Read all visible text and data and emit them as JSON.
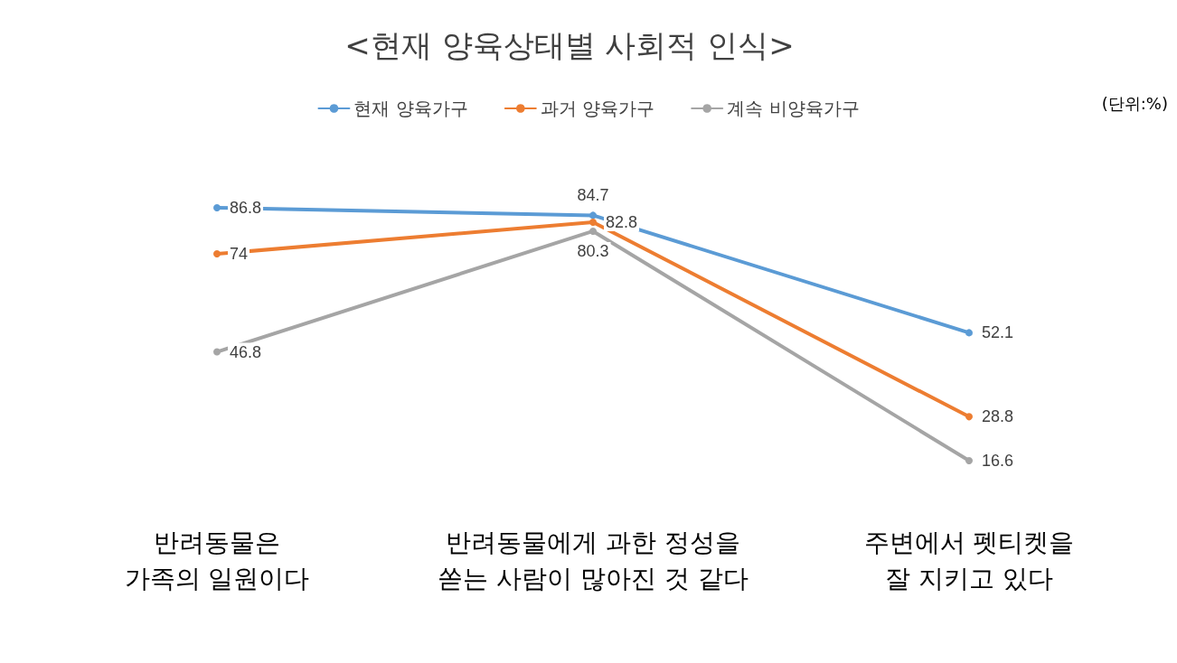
{
  "chart_data": {
    "type": "line",
    "title": "<현재 양육상태별 사회적 인식>",
    "categories": [
      "반려동물은\n가족의 일원이다",
      "반려동물에게 과한 정성을\n쏟는 사람이 많아진 것 같다",
      "주변에서 펫티켓을\n잘 지키고 있다"
    ],
    "series": [
      {
        "name": "현재 양육가구",
        "color": "#5b9bd5",
        "values": [
          86.8,
          84.7,
          52.1
        ]
      },
      {
        "name": "과거 양육가구",
        "color": "#ed7d31",
        "values": [
          74,
          82.8,
          28.8
        ]
      },
      {
        "name": "계속 비양육가구",
        "color": "#a5a5a5",
        "values": [
          46.8,
          80.3,
          16.6
        ]
      }
    ],
    "annotations": [
      "(단위:%)"
    ],
    "data_labels": true,
    "legend": "top",
    "grid": false,
    "marker": "circle",
    "line_style": "solid"
  }
}
